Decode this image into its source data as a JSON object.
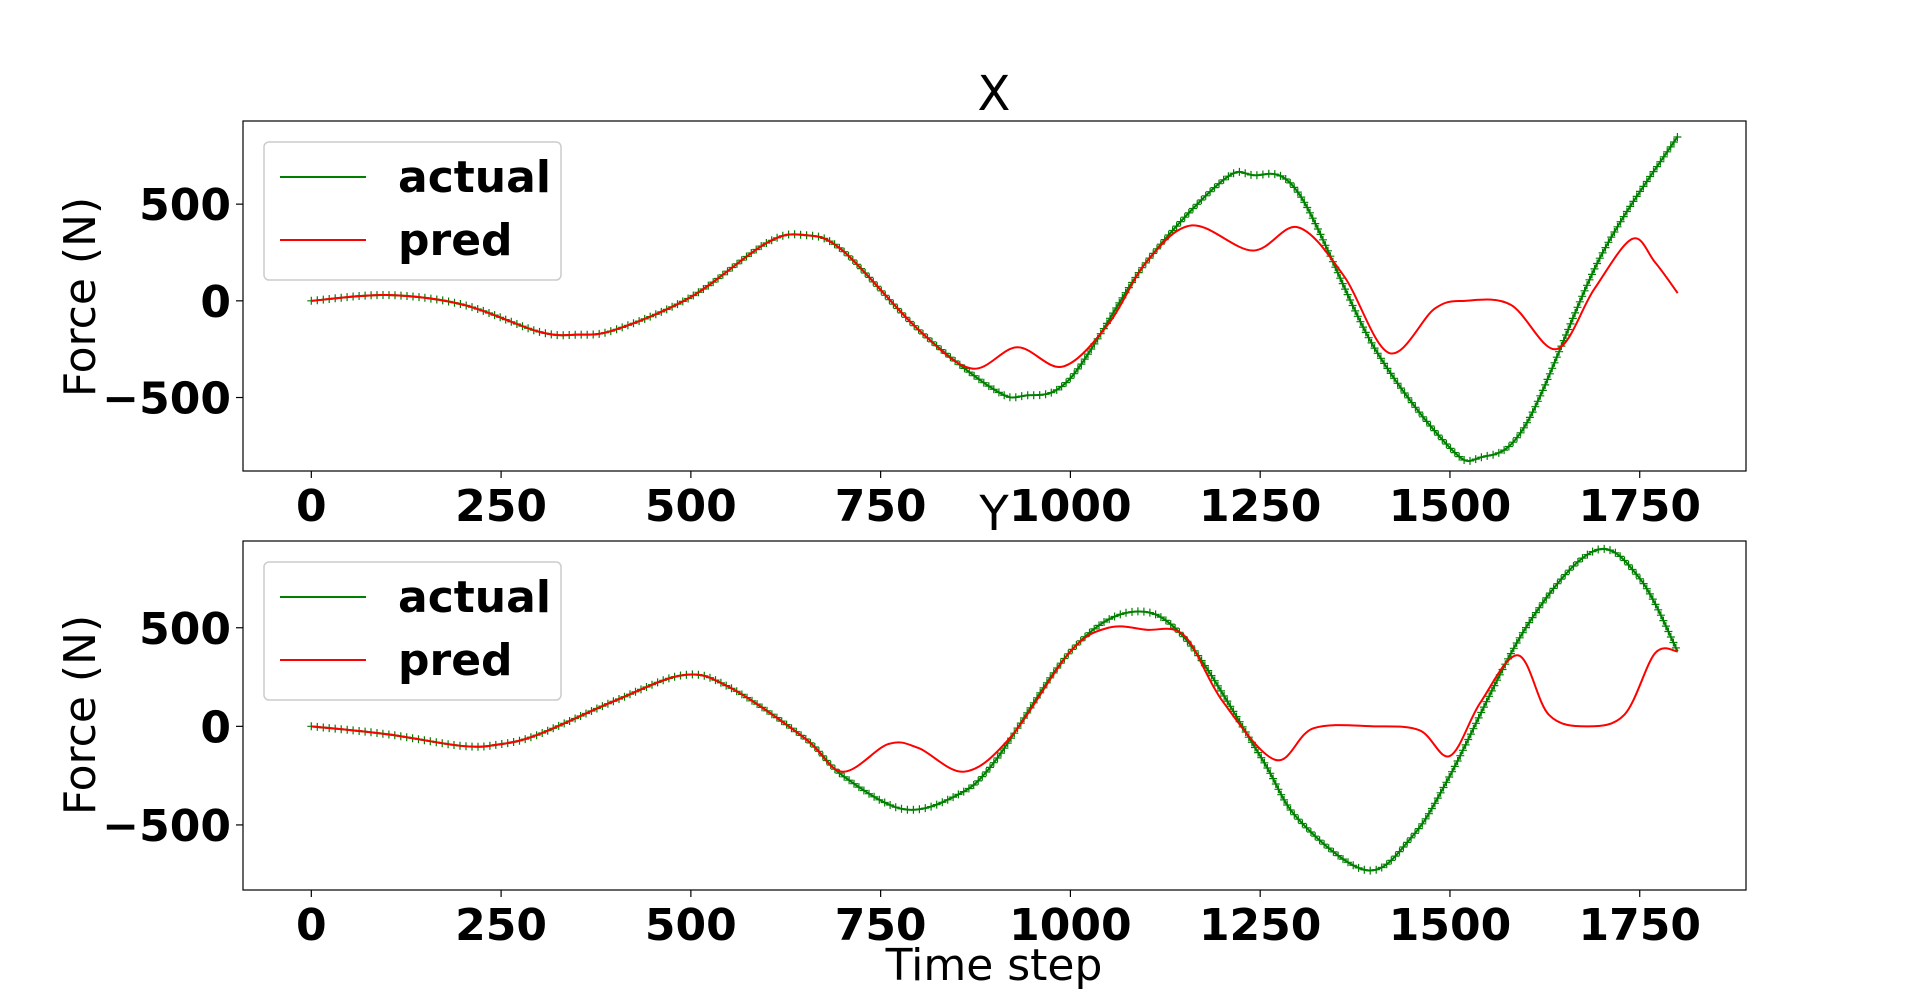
{
  "chart_data": [
    {
      "type": "line",
      "title": "X",
      "xlabel": "",
      "ylabel": "Force (N)",
      "xlim": [
        -90,
        1890
      ],
      "ylim": [
        -880,
        930
      ],
      "xticks": [
        0,
        250,
        500,
        750,
        1000,
        1250,
        1500,
        1750
      ],
      "xtick_labels": [
        "0",
        "250",
        "500",
        "750",
        "1000",
        "1250",
        "1500",
        "1750"
      ],
      "yticks": [
        500,
        0,
        -500
      ],
      "ytick_labels": [
        "500",
        "0",
        "−500"
      ],
      "legend": {
        "placement": "top-left",
        "entries": [
          "actual",
          "pred"
        ]
      },
      "grid": false,
      "series": [
        {
          "name": "actual",
          "color": "#008000",
          "marker": "+",
          "x": [
            0,
            100,
            200,
            300,
            350,
            400,
            500,
            600,
            650,
            700,
            800,
            900,
            940,
            1000,
            1100,
            1200,
            1240,
            1300,
            1400,
            1500,
            1540,
            1600,
            1700,
            1800
          ],
          "y": [
            0,
            30,
            -20,
            -160,
            -175,
            -150,
            20,
            300,
            340,
            260,
            -150,
            -460,
            -490,
            -400,
            200,
            620,
            650,
            560,
            -240,
            -760,
            -810,
            -640,
            240,
            850
          ]
        },
        {
          "name": "pred",
          "color": "#ff0000",
          "x": [
            0,
            100,
            200,
            300,
            350,
            400,
            500,
            600,
            650,
            700,
            800,
            870,
            930,
            990,
            1050,
            1100,
            1160,
            1240,
            1300,
            1360,
            1420,
            1480,
            1520,
            1580,
            1640,
            1690,
            1740,
            1770,
            1800
          ],
          "y": [
            0,
            30,
            -20,
            -160,
            -175,
            -150,
            20,
            300,
            340,
            260,
            -150,
            -350,
            -240,
            -340,
            -120,
            200,
            390,
            260,
            380,
            130,
            -270,
            -40,
            0,
            -20,
            -250,
            60,
            320,
            200,
            40
          ]
        }
      ]
    },
    {
      "type": "line",
      "title": "Y",
      "xlabel": "Time step",
      "ylabel": "Force (N)",
      "xlim": [
        -90,
        1890
      ],
      "ylim": [
        -830,
        940
      ],
      "xticks": [
        0,
        250,
        500,
        750,
        1000,
        1250,
        1500,
        1750
      ],
      "xtick_labels": [
        "0",
        "250",
        "500",
        "750",
        "1000",
        "1250",
        "1500",
        "1750"
      ],
      "yticks": [
        500,
        0,
        -500
      ],
      "ytick_labels": [
        "500",
        "0",
        "−500"
      ],
      "legend": {
        "placement": "top-left",
        "entries": [
          "actual",
          "pred"
        ]
      },
      "grid": false,
      "series": [
        {
          "name": "actual",
          "color": "#008000",
          "marker": "+",
          "x": [
            0,
            100,
            200,
            250,
            300,
            400,
            490,
            550,
            650,
            700,
            780,
            850,
            900,
            1000,
            1080,
            1150,
            1250,
            1300,
            1390,
            1450,
            1500,
            1600,
            1690,
            1750,
            1800
          ],
          "y": [
            0,
            -40,
            -100,
            -90,
            -40,
            130,
            260,
            200,
            -60,
            -250,
            -420,
            -350,
            -180,
            380,
            580,
            450,
            -150,
            -470,
            -730,
            -560,
            -250,
            500,
            890,
            750,
            380
          ]
        },
        {
          "name": "pred",
          "color": "#ff0000",
          "x": [
            0,
            100,
            200,
            250,
            300,
            400,
            490,
            550,
            650,
            700,
            760,
            800,
            860,
            920,
            1000,
            1050,
            1100,
            1150,
            1200,
            1270,
            1320,
            1400,
            1460,
            1500,
            1540,
            1590,
            1630,
            1680,
            1730,
            1770,
            1800
          ],
          "y": [
            0,
            -40,
            -100,
            -90,
            -40,
            130,
            260,
            200,
            -60,
            -230,
            -90,
            -110,
            -230,
            -60,
            380,
            500,
            490,
            460,
            130,
            -170,
            -10,
            0,
            -20,
            -150,
            120,
            360,
            60,
            0,
            60,
            370,
            380
          ]
        }
      ]
    }
  ]
}
